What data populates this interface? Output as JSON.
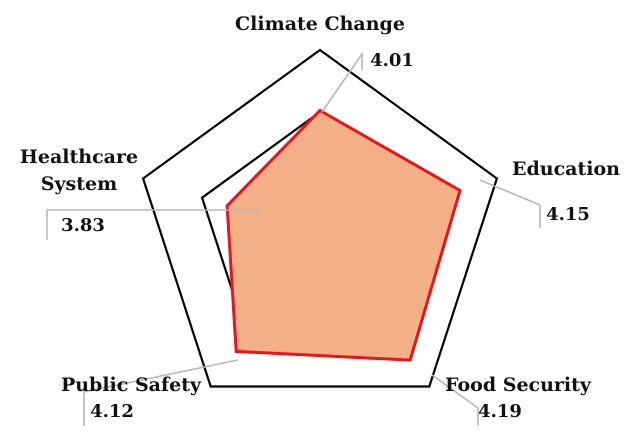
{
  "chart_data": {
    "type": "radar",
    "categories": [
      "Climate Change",
      "Education",
      "Food Security",
      "Public Safety",
      "Healthcare System"
    ],
    "category_lines": [
      [
        "Climate Change"
      ],
      [
        "Education"
      ],
      [
        "Food Security"
      ],
      [
        "Public Safety"
      ],
      [
        "Healthcare",
        "System"
      ]
    ],
    "series": [
      {
        "values": [
          4.01,
          4.15,
          4.19,
          4.12,
          3.83
        ]
      }
    ],
    "value_labels": [
      "4.01",
      "4.15",
      "4.19",
      "4.12",
      "3.83"
    ],
    "rlim": [
      3.2,
      4.4
    ],
    "grid_levels": [
      3.6,
      3.8,
      4.0,
      4.4
    ],
    "grid_color": "#000000",
    "fill_color": "#f3b086",
    "line_color": "#e8141c",
    "leader_color": "#b7b7b7"
  }
}
